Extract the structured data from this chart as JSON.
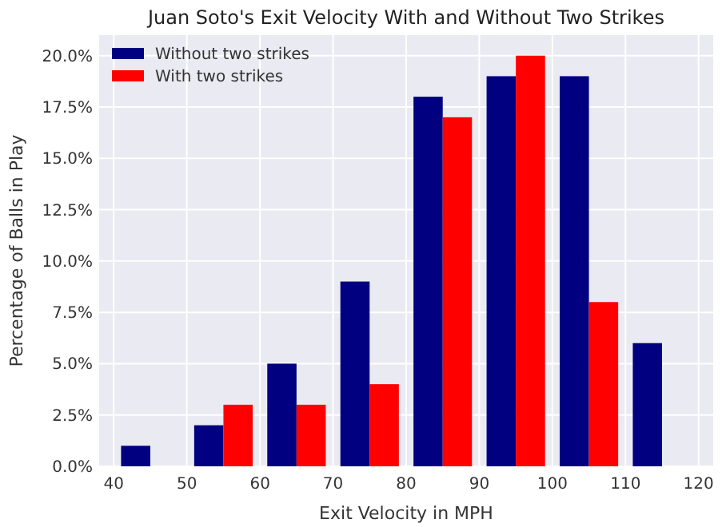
{
  "chart_data": {
    "type": "histogram",
    "title": "Juan Soto's Exit Velocity With and Without Two Strikes",
    "xlabel": "Exit Velocity in MPH",
    "ylabel": "Percentage of Balls in Play",
    "bins": [
      40,
      50,
      60,
      70,
      80,
      90,
      100,
      110,
      120
    ],
    "series": [
      {
        "name": "Without two strikes",
        "color": "#000080",
        "values": [
          1,
          2,
          5,
          9,
          18,
          19,
          19,
          6
        ]
      },
      {
        "name": "With two strikes",
        "color": "#ff0000",
        "values": [
          0,
          3,
          3,
          4,
          17,
          20,
          8,
          0
        ]
      }
    ],
    "xlim": [
      38,
      122
    ],
    "xticks": [
      40,
      50,
      60,
      70,
      80,
      90,
      100,
      110,
      120
    ],
    "ylim": [
      0,
      21
    ],
    "yticks": [
      {
        "value": 0,
        "label": "0.0%"
      },
      {
        "value": 2.5,
        "label": "2.5%"
      },
      {
        "value": 5,
        "label": "5.0%"
      },
      {
        "value": 7.5,
        "label": "7.5%"
      },
      {
        "value": 10,
        "label": "10.0%"
      },
      {
        "value": 12.5,
        "label": "12.5%"
      },
      {
        "value": 15,
        "label": "15.0%"
      },
      {
        "value": 17.5,
        "label": "17.5%"
      },
      {
        "value": 20,
        "label": "20.0%"
      }
    ],
    "grid": true,
    "legend": "top left"
  }
}
